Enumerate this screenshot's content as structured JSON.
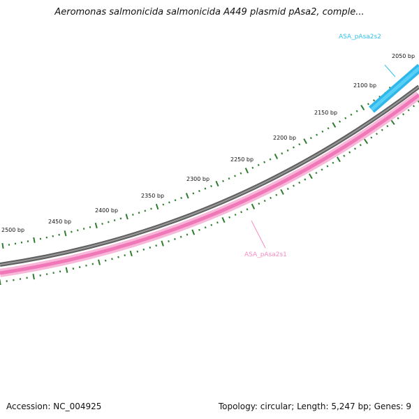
{
  "title": "Aeromonas salmonicida salmonicida A449 plasmid pAsa2, comple...",
  "footer": {
    "accession": "Accession: NC_004925",
    "summary": "Topology: circular; Length: 5,247 bp; Genes: 9"
  },
  "map": {
    "colors": {
      "backbone": "#7a7a7a",
      "tick": "#2e7d2e",
      "forward_feature": "#33c0ee",
      "reverse_feature": "#f58cc4",
      "text": "#111111"
    },
    "features": [
      {
        "id": "ASA_pAsa2s2",
        "label": "ASA_pAsa2s2",
        "strand": "forward",
        "color": "#33c0ee"
      },
      {
        "id": "ASA_pAsa2s1",
        "label": "ASA_pAsa2s1",
        "strand": "reverse",
        "color": "#f58cc4"
      }
    ],
    "scale_labels": [
      "2050 bp",
      "2100 bp",
      "2150 bp",
      "2200 bp",
      "2250 bp",
      "2300 bp",
      "2350 bp",
      "2400 bp",
      "2450 bp",
      "2500 bp"
    ]
  }
}
